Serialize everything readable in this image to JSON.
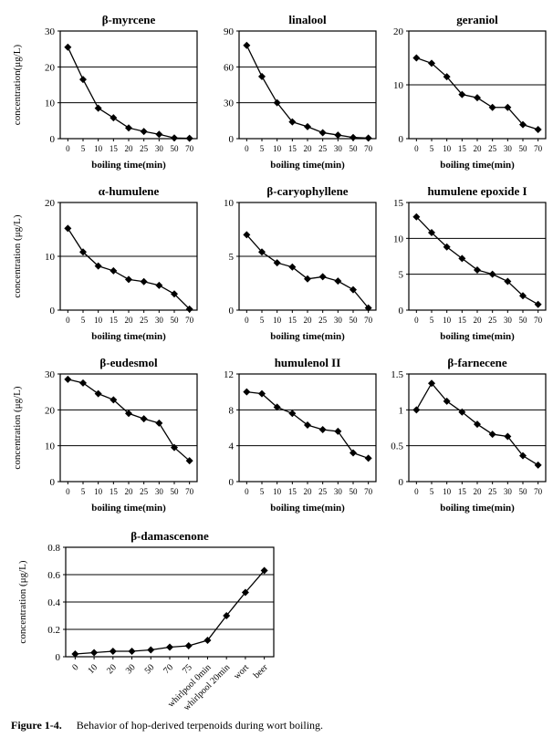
{
  "chart_data": [
    {
      "type": "line",
      "title": "β-myrcene",
      "xlabel": "boiling time(min)",
      "ylabel": "concentration(μg/L)",
      "categories": [
        "0",
        "5",
        "10",
        "15",
        "20",
        "25",
        "30",
        "50",
        "70"
      ],
      "values": [
        25.5,
        16.5,
        8.5,
        5.8,
        3.0,
        2.0,
        1.2,
        0.2,
        0.1
      ],
      "ylim": [
        0,
        30
      ],
      "yticks": [
        "0",
        "10",
        "20",
        "30"
      ],
      "gridlines": [
        10,
        20
      ]
    },
    {
      "type": "line",
      "title": "linalool",
      "xlabel": "boiling time(min)",
      "ylabel": "",
      "categories": [
        "0",
        "5",
        "10",
        "15",
        "20",
        "25",
        "30",
        "50",
        "70"
      ],
      "values": [
        78,
        52,
        30,
        14,
        10,
        5,
        3,
        1,
        0.5
      ],
      "ylim": [
        0,
        90
      ],
      "yticks": [
        "0",
        "30",
        "60",
        "90"
      ],
      "gridlines": [
        30,
        60
      ]
    },
    {
      "type": "line",
      "title": "geraniol",
      "xlabel": "boiling time(min)",
      "ylabel": "",
      "categories": [
        "0",
        "5",
        "10",
        "15",
        "20",
        "25",
        "30",
        "50",
        "70"
      ],
      "values": [
        15.0,
        14.0,
        11.5,
        8.2,
        7.6,
        5.8,
        5.8,
        2.6,
        1.7
      ],
      "ylim": [
        0,
        20
      ],
      "yticks": [
        "0",
        "10",
        "20"
      ],
      "gridlines": [
        10
      ]
    },
    {
      "type": "line",
      "title": "α-humulene",
      "xlabel": "boiling time(min)",
      "ylabel": "concentration (μg/L)",
      "categories": [
        "0",
        "5",
        "10",
        "15",
        "20",
        "25",
        "30",
        "50",
        "70"
      ],
      "values": [
        15.2,
        10.8,
        8.2,
        7.3,
        5.7,
        5.3,
        4.6,
        3.0,
        0.2
      ],
      "ylim": [
        0,
        20
      ],
      "yticks": [
        "0",
        "10",
        "20"
      ],
      "gridlines": [
        10
      ]
    },
    {
      "type": "line",
      "title": "β-caryophyllene",
      "xlabel": "boiling time(min)",
      "ylabel": "",
      "categories": [
        "0",
        "5",
        "10",
        "15",
        "20",
        "25",
        "30",
        "50",
        "70"
      ],
      "values": [
        7.0,
        5.4,
        4.4,
        4.0,
        2.9,
        3.1,
        2.7,
        1.9,
        0.2
      ],
      "ylim": [
        0,
        10
      ],
      "yticks": [
        "0",
        "5",
        "10"
      ],
      "gridlines": [
        5
      ]
    },
    {
      "type": "line",
      "title": "humulene epoxide I",
      "xlabel": "boiling time(min)",
      "ylabel": "",
      "categories": [
        "0",
        "5",
        "10",
        "15",
        "20",
        "25",
        "30",
        "50",
        "70"
      ],
      "values": [
        13.0,
        10.8,
        8.8,
        7.2,
        5.6,
        5.0,
        4.0,
        2.0,
        0.8
      ],
      "ylim": [
        0,
        15
      ],
      "yticks": [
        "0",
        "5",
        "10",
        "15"
      ],
      "gridlines": [
        5,
        10
      ]
    },
    {
      "type": "line",
      "title": "β-eudesmol",
      "xlabel": "boiling time(min)",
      "ylabel": "concentration (μg/L)",
      "categories": [
        "0",
        "5",
        "10",
        "15",
        "20",
        "25",
        "30",
        "50",
        "70"
      ],
      "values": [
        28.5,
        27.5,
        24.5,
        22.8,
        19.0,
        17.5,
        16.3,
        9.5,
        5.8
      ],
      "ylim": [
        0,
        30
      ],
      "yticks": [
        "0",
        "10",
        "20",
        "30"
      ],
      "gridlines": [
        10,
        20
      ]
    },
    {
      "type": "line",
      "title": "humulenol II",
      "xlabel": "boiling time(min)",
      "ylabel": "",
      "categories": [
        "0",
        "5",
        "10",
        "15",
        "20",
        "25",
        "30",
        "50",
        "70"
      ],
      "values": [
        10.0,
        9.8,
        8.3,
        7.6,
        6.3,
        5.8,
        5.6,
        3.2,
        2.6
      ],
      "ylim": [
        0,
        12
      ],
      "yticks": [
        "0",
        "4",
        "8",
        "12"
      ],
      "gridlines": [
        4,
        8
      ]
    },
    {
      "type": "line",
      "title": "β-farnecene",
      "xlabel": "boiling time(min)",
      "ylabel": "",
      "categories": [
        "0",
        "5",
        "10",
        "15",
        "20",
        "25",
        "30",
        "50",
        "70"
      ],
      "values": [
        1.0,
        1.37,
        1.12,
        0.97,
        0.8,
        0.66,
        0.63,
        0.36,
        0.23
      ],
      "ylim": [
        0,
        1.5
      ],
      "yticks": [
        "0",
        "0.5",
        "1",
        "1.5"
      ],
      "gridlines": [
        0.5,
        1
      ]
    },
    {
      "type": "line",
      "title": "β-damascenone",
      "xlabel": "",
      "ylabel": "concentration (μg/L)",
      "categories": [
        "0",
        "10",
        "20",
        "30",
        "50",
        "70",
        "75",
        "whirlpool 0min",
        "whirlpool 20min",
        "wort",
        "beer"
      ],
      "values": [
        0.02,
        0.03,
        0.04,
        0.04,
        0.05,
        0.07,
        0.08,
        0.12,
        0.3,
        0.47,
        0.63
      ],
      "ylim": [
        0,
        0.8
      ],
      "yticks": [
        "0",
        "0.2",
        "0.4",
        "0.6",
        "0.8"
      ],
      "gridlines": [
        0.2,
        0.4,
        0.6
      ]
    }
  ],
  "caption": {
    "label": "Figure 1-4.",
    "text": "Behavior of hop-derived terpenoids during wort boiling."
  }
}
